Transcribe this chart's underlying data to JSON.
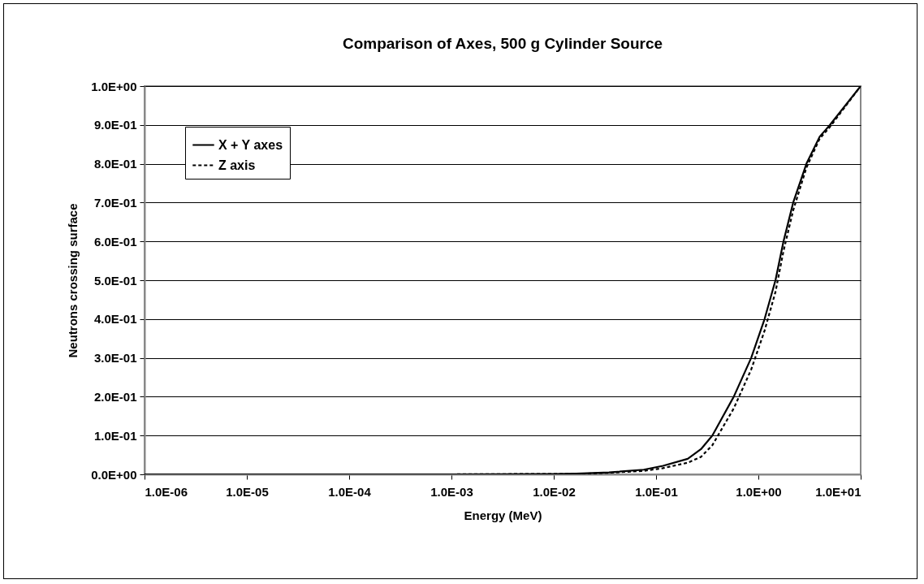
{
  "chart_data": {
    "type": "line",
    "title": "Comparison of Axes, 500 g Cylinder Source",
    "xlabel": "Energy (MeV)",
    "ylabel": "Neutrons crossing surface",
    "log": "x",
    "x": [
      1e-06,
      0.0001,
      0.001,
      0.01,
      0.0166,
      0.0347,
      0.0759,
      0.117,
      0.204,
      0.275,
      0.355,
      0.575,
      0.851,
      1.15,
      1.47,
      1.76,
      2.19,
      2.95,
      3.98,
      5.01,
      10
    ],
    "series": [
      {
        "name": "X + Y axes",
        "color": "#000000",
        "line_style": "solid",
        "values": [
          0,
          0,
          0,
          0.001,
          0.002,
          0.005,
          0.012,
          0.022,
          0.04,
          0.065,
          0.1,
          0.2,
          0.3,
          0.4,
          0.5,
          0.6,
          0.7,
          0.8,
          0.87,
          0.9,
          1.0
        ]
      },
      {
        "name": "Z axis",
        "color": "#000000",
        "line_style": "dashed",
        "values": [
          0,
          0,
          0,
          0.001,
          0.001,
          0.004,
          0.009,
          0.016,
          0.03,
          0.045,
          0.075,
          0.17,
          0.27,
          0.37,
          0.47,
          0.575,
          0.68,
          0.79,
          0.865,
          0.895,
          1.0
        ]
      }
    ],
    "xlim": [
      1e-06,
      10
    ],
    "xticks": [
      {
        "value": 1e-06,
        "label": "1.0E-06"
      },
      {
        "value": 1e-05,
        "label": "1.0E-05"
      },
      {
        "value": 0.0001,
        "label": "1.0E-04"
      },
      {
        "value": 0.001,
        "label": "1.0E-03"
      },
      {
        "value": 0.01,
        "label": "1.0E-02"
      },
      {
        "value": 0.1,
        "label": "1.0E-01"
      },
      {
        "value": 1,
        "label": "1.0E+00"
      },
      {
        "value": 10,
        "label": "1.0E+01"
      }
    ],
    "ylim": [
      0,
      1
    ],
    "yticks": [
      {
        "value": 0,
        "label": "0.0E+00"
      },
      {
        "value": 0.1,
        "label": "1.0E-01"
      },
      {
        "value": 0.2,
        "label": "2.0E-01"
      },
      {
        "value": 0.3,
        "label": "3.0E-01"
      },
      {
        "value": 0.4,
        "label": "4.0E-01"
      },
      {
        "value": 0.5,
        "label": "5.0E-01"
      },
      {
        "value": 0.6,
        "label": "6.0E-01"
      },
      {
        "value": 0.7,
        "label": "7.0E-01"
      },
      {
        "value": 0.8,
        "label": "8.0E-01"
      },
      {
        "value": 0.9,
        "label": "9.0E-01"
      },
      {
        "value": 1,
        "label": "1.0E+00"
      }
    ],
    "grid": "y",
    "legend": "top left"
  }
}
